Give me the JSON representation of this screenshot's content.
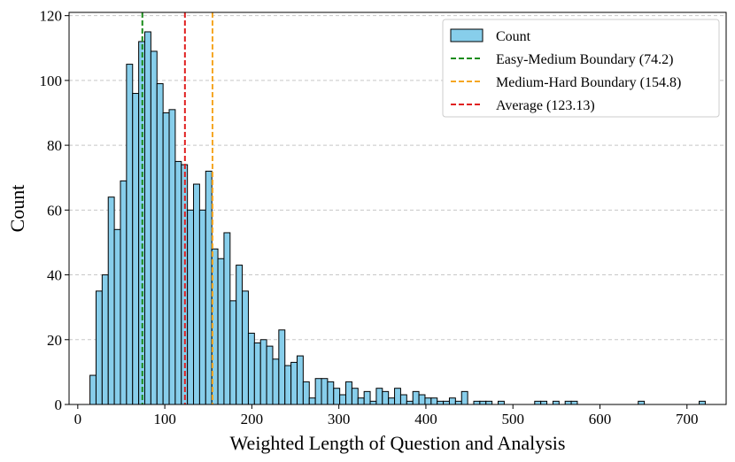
{
  "chart_data": {
    "type": "bar",
    "title": "",
    "xlabel": "Weighted Length of Question and Analysis",
    "ylabel": "Count",
    "xlim": [
      -10,
      745
    ],
    "ylim": [
      0,
      121
    ],
    "x_ticks": [
      0,
      100,
      200,
      300,
      400,
      500,
      600,
      700
    ],
    "y_ticks": [
      0,
      20,
      40,
      60,
      80,
      100,
      120
    ],
    "grid": "horizontal dashed",
    "legend_position": "top-right",
    "bin_width": 7,
    "bar_color": "#87ceeb",
    "bar_edge_color": "#000000",
    "series": [
      {
        "name": "Count",
        "bins": [
          {
            "x0": 14,
            "y": 9
          },
          {
            "x0": 21,
            "y": 35
          },
          {
            "x0": 28,
            "y": 40
          },
          {
            "x0": 35,
            "y": 64
          },
          {
            "x0": 42,
            "y": 54
          },
          {
            "x0": 49,
            "y": 69
          },
          {
            "x0": 56,
            "y": 105
          },
          {
            "x0": 63,
            "y": 96
          },
          {
            "x0": 70,
            "y": 112
          },
          {
            "x0": 77,
            "y": 115
          },
          {
            "x0": 84,
            "y": 109
          },
          {
            "x0": 91,
            "y": 99
          },
          {
            "x0": 98,
            "y": 90
          },
          {
            "x0": 105,
            "y": 91
          },
          {
            "x0": 112,
            "y": 75
          },
          {
            "x0": 119,
            "y": 74
          },
          {
            "x0": 126,
            "y": 60
          },
          {
            "x0": 133,
            "y": 68
          },
          {
            "x0": 140,
            "y": 60
          },
          {
            "x0": 147,
            "y": 72
          },
          {
            "x0": 154,
            "y": 48
          },
          {
            "x0": 161,
            "y": 45
          },
          {
            "x0": 168,
            "y": 53
          },
          {
            "x0": 175,
            "y": 32
          },
          {
            "x0": 182,
            "y": 43
          },
          {
            "x0": 189,
            "y": 35
          },
          {
            "x0": 196,
            "y": 22
          },
          {
            "x0": 203,
            "y": 19
          },
          {
            "x0": 210,
            "y": 20
          },
          {
            "x0": 217,
            "y": 18
          },
          {
            "x0": 224,
            "y": 14
          },
          {
            "x0": 231,
            "y": 23
          },
          {
            "x0": 238,
            "y": 12
          },
          {
            "x0": 245,
            "y": 13
          },
          {
            "x0": 252,
            "y": 15
          },
          {
            "x0": 259,
            "y": 7
          },
          {
            "x0": 266,
            "y": 2
          },
          {
            "x0": 273,
            "y": 8
          },
          {
            "x0": 280,
            "y": 8
          },
          {
            "x0": 287,
            "y": 7
          },
          {
            "x0": 294,
            "y": 5
          },
          {
            "x0": 301,
            "y": 3
          },
          {
            "x0": 308,
            "y": 7
          },
          {
            "x0": 315,
            "y": 5
          },
          {
            "x0": 322,
            "y": 2
          },
          {
            "x0": 329,
            "y": 4
          },
          {
            "x0": 336,
            "y": 1
          },
          {
            "x0": 343,
            "y": 5
          },
          {
            "x0": 350,
            "y": 4
          },
          {
            "x0": 357,
            "y": 2
          },
          {
            "x0": 364,
            "y": 5
          },
          {
            "x0": 371,
            "y": 3
          },
          {
            "x0": 378,
            "y": 1
          },
          {
            "x0": 385,
            "y": 4
          },
          {
            "x0": 392,
            "y": 3
          },
          {
            "x0": 399,
            "y": 2
          },
          {
            "x0": 406,
            "y": 2
          },
          {
            "x0": 413,
            "y": 1
          },
          {
            "x0": 420,
            "y": 1
          },
          {
            "x0": 427,
            "y": 2
          },
          {
            "x0": 434,
            "y": 1
          },
          {
            "x0": 441,
            "y": 4
          },
          {
            "x0": 455,
            "y": 1
          },
          {
            "x0": 462,
            "y": 1
          },
          {
            "x0": 469,
            "y": 1
          },
          {
            "x0": 483,
            "y": 1
          },
          {
            "x0": 525,
            "y": 1
          },
          {
            "x0": 532,
            "y": 1
          },
          {
            "x0": 546,
            "y": 1
          },
          {
            "x0": 560,
            "y": 1
          },
          {
            "x0": 567,
            "y": 1
          },
          {
            "x0": 644,
            "y": 1
          },
          {
            "x0": 714,
            "y": 1
          }
        ]
      }
    ],
    "reference_lines": [
      {
        "label": "Easy-Medium Boundary (74.2)",
        "x": 74.2,
        "color": "#1a8c1a"
      },
      {
        "label": "Medium-Hard Boundary (154.8)",
        "x": 154.8,
        "color": "#f5a623"
      },
      {
        "label": "Average (123.13)",
        "x": 123.13,
        "color": "#e02020"
      }
    ]
  }
}
